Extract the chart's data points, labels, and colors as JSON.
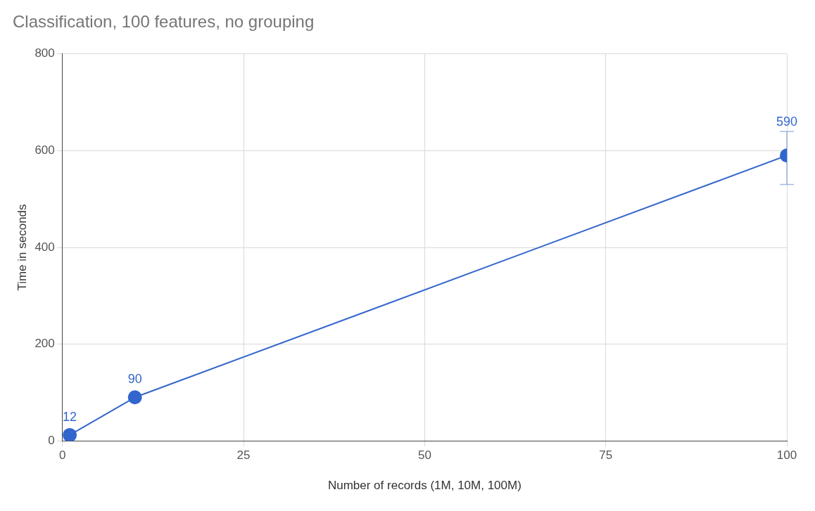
{
  "chart_data": {
    "type": "line",
    "title": "Classification, 100 features, no grouping",
    "xlabel": "Number of records (1M, 10M, 100M)",
    "ylabel": "Time in seconds",
    "x": [
      1,
      10,
      100
    ],
    "series": [
      {
        "color": "#3366cc",
        "values": [
          12,
          90,
          590
        ],
        "errors": [
          null,
          null,
          [
            530,
            640
          ]
        ]
      }
    ],
    "xlim": [
      0,
      100
    ],
    "xticks": [
      0,
      25,
      50,
      75,
      100
    ],
    "ylim": [
      0,
      800
    ],
    "yticks": [
      0,
      200,
      400,
      600,
      800
    ],
    "grid": true,
    "legend": false,
    "marker": "circle",
    "line_style": "solid",
    "data_labels": true
  }
}
